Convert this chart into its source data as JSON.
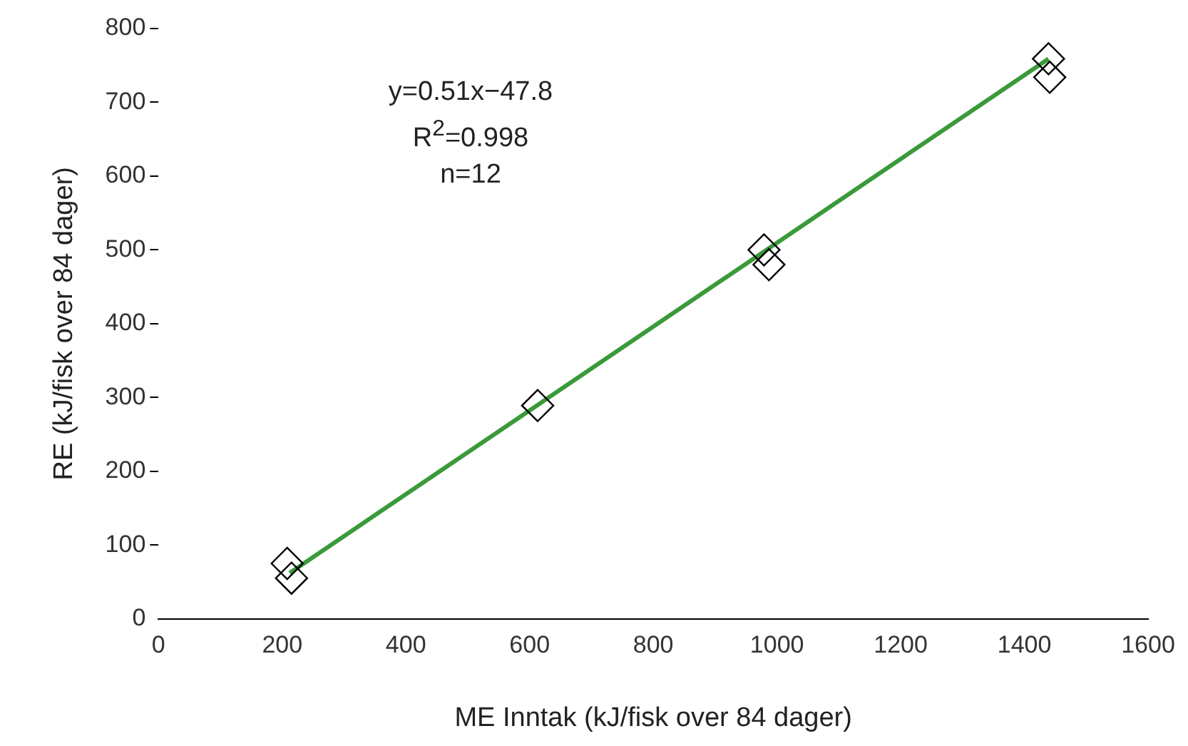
{
  "chart_data": {
    "type": "scatter",
    "xlabel": "ME Inntak (kJ/fisk over 84 dager)",
    "ylabel": "RE (kJ/fisk over 84 dager)",
    "xlim": [
      0,
      1600
    ],
    "xticks": [
      0,
      200,
      400,
      600,
      800,
      1000,
      1200,
      1400,
      1600
    ],
    "ylim": [
      0,
      800
    ],
    "yticks": [
      0,
      100,
      200,
      300,
      400,
      500,
      600,
      700,
      800
    ],
    "grid": false,
    "legend": false,
    "annotations": [
      "y=0.51x−47.8",
      "R$^{2}$=0.998",
      "n=12"
    ],
    "series": [
      {
        "type": "scatter",
        "color": "#000000",
        "marker": "diamond",
        "x": [
          208,
          215,
          613,
          979,
          987,
          1439,
          1441
        ],
        "values": [
          75,
          55,
          289,
          500,
          480,
          759,
          734
        ]
      },
      {
        "type": "line",
        "color": "#3a9a3a",
        "marker": "none",
        "line_style": "solid",
        "x": [
          212,
          1439
        ],
        "values": [
          62,
          759
        ]
      }
    ]
  }
}
